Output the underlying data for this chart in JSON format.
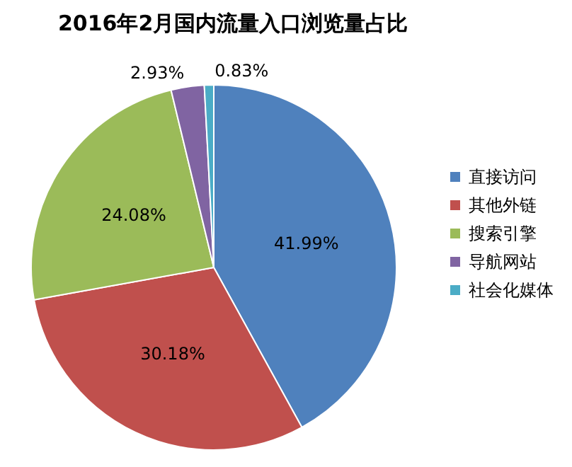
{
  "chart_data": {
    "type": "pie",
    "title": "2016年2月国内流量入口浏览量占比",
    "categories": [
      "直接访问",
      "其他外链",
      "搜索引擎",
      "导航网站",
      "社会化媒体"
    ],
    "values": [
      41.99,
      30.18,
      24.08,
      2.93,
      0.83
    ],
    "colors": [
      "#4f81bd",
      "#c0504d",
      "#9bbb59",
      "#8064a2",
      "#4bacc6"
    ],
    "value_labels": [
      "41.99%",
      "30.18%",
      "24.08%",
      "2.93%",
      "0.83%"
    ],
    "legend": "right"
  }
}
